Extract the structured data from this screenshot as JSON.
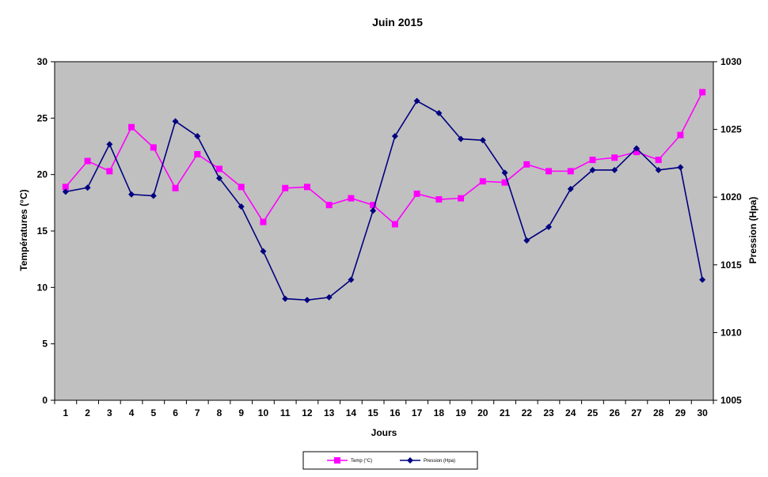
{
  "chart_data": {
    "type": "line",
    "title": "Juin 2015",
    "xlabel": "Jours",
    "ylabel": "Températures (°C)",
    "y2label": "Pression (Hpa)",
    "categories": [
      "1",
      "2",
      "3",
      "4",
      "5",
      "6",
      "7",
      "8",
      "9",
      "10",
      "11",
      "12",
      "13",
      "14",
      "15",
      "16",
      "17",
      "18",
      "19",
      "20",
      "21",
      "22",
      "23",
      "24",
      "25",
      "26",
      "27",
      "28",
      "29",
      "30"
    ],
    "ylim": [
      0,
      30
    ],
    "y2lim": [
      1005,
      1030
    ],
    "yticks": [
      "0",
      "5",
      "10",
      "15",
      "20",
      "25",
      "30"
    ],
    "y2ticks": [
      "1005",
      "1010",
      "1015",
      "1020",
      "1025",
      "1030"
    ],
    "plot_background": "#c0c0c0",
    "grid": false,
    "legend_position": "bottom",
    "series": [
      {
        "name": "Temp (°C)",
        "axis": "left",
        "color": "#ff00ff",
        "marker": "square",
        "values": [
          18.9,
          21.2,
          20.3,
          24.2,
          22.4,
          18.8,
          21.8,
          20.5,
          18.9,
          15.8,
          18.8,
          18.9,
          17.3,
          17.9,
          17.3,
          15.6,
          18.3,
          17.8,
          17.9,
          19.4,
          19.3,
          20.9,
          20.3,
          20.3,
          21.3,
          21.5,
          22.0,
          21.3,
          23.5,
          27.3
        ]
      },
      {
        "name": "Pression  (Hpa)",
        "axis": "right",
        "color": "#000080",
        "marker": "diamond",
        "values": [
          1020.4,
          1020.7,
          1023.9,
          1020.2,
          1020.1,
          1025.6,
          1024.5,
          1021.4,
          1019.3,
          1016.0,
          1012.5,
          1012.4,
          1012.6,
          1013.9,
          1019.0,
          1024.5,
          1027.1,
          1026.2,
          1024.3,
          1024.2,
          1021.8,
          1016.8,
          1017.8,
          1020.6,
          1022.0,
          1022.0,
          1023.6,
          1022.0,
          1022.2,
          1013.9
        ]
      }
    ]
  }
}
